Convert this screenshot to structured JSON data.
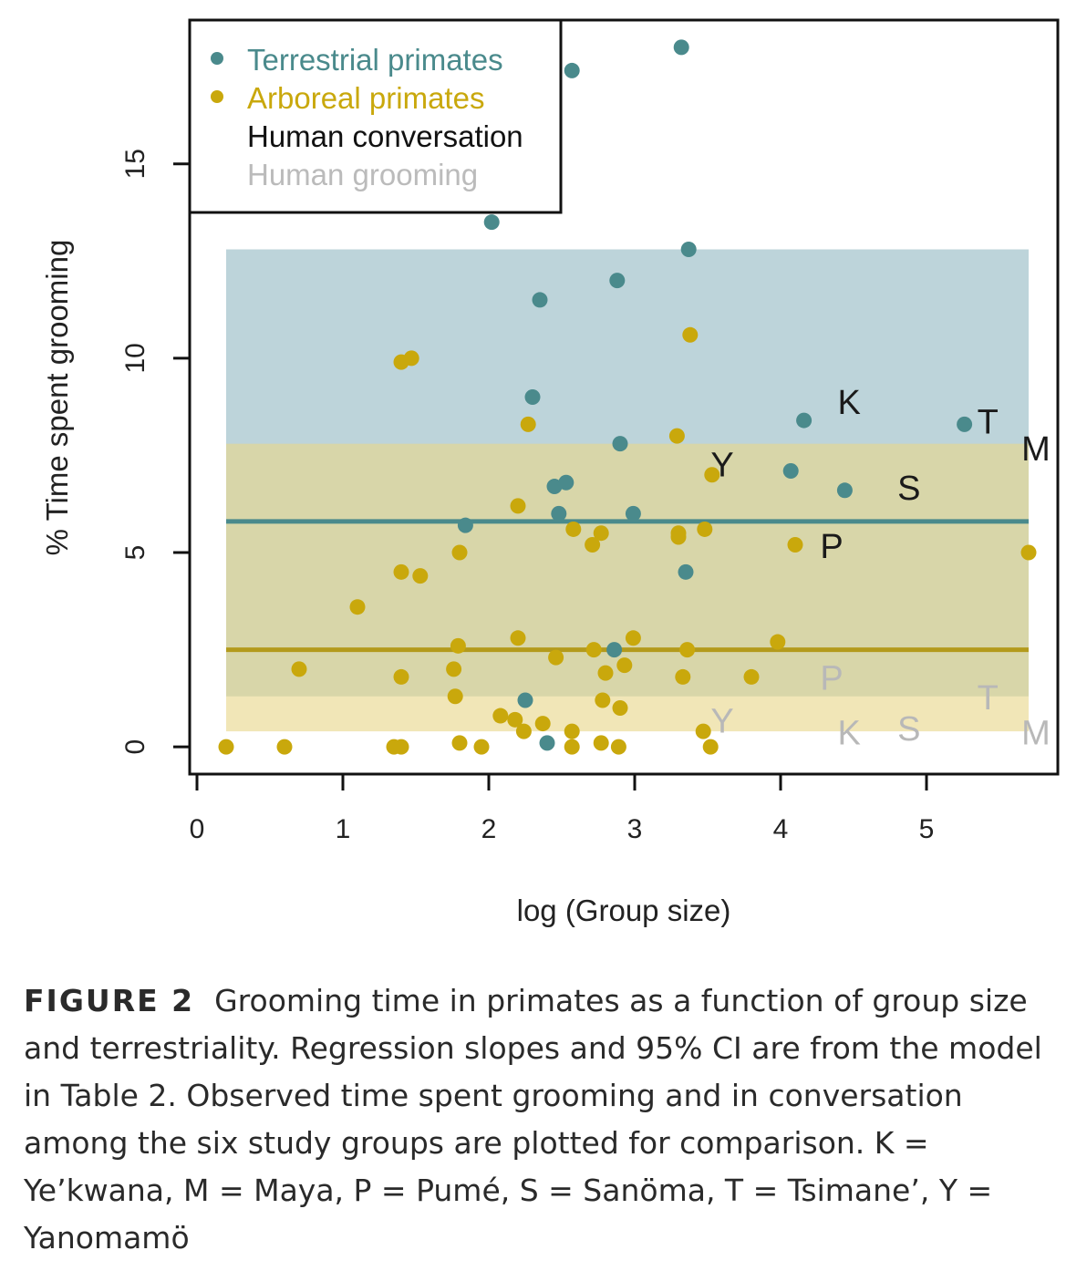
{
  "chart_data": {
    "type": "scatter",
    "xlabel": "log (Group size)",
    "ylabel": "% Time spent grooming",
    "xlim": [
      -0.05,
      5.9
    ],
    "ylim": [
      -0.7,
      18.7
    ],
    "xticks": [
      "0",
      "1",
      "2",
      "3",
      "4",
      "5"
    ],
    "yticks": [
      "0",
      "5",
      "10",
      "15"
    ],
    "legend_position": "top-left",
    "legend": [
      {
        "label": "Terrestrial primates",
        "color": "#4a8a8c",
        "marker": "•"
      },
      {
        "label": "Arboreal primates",
        "color": "#c9a80c",
        "marker": "•"
      },
      {
        "label": "Human conversation",
        "color": "#111111",
        "marker": ""
      },
      {
        "label": "Human grooming",
        "color": "#bbbbbb",
        "marker": ""
      }
    ],
    "ci_bands": [
      {
        "series": "Terrestrial primates",
        "x": [
          0.2,
          5.7
        ],
        "ymin": 1.3,
        "ymax": 12.8,
        "color": "#bdd4da"
      },
      {
        "series": "Arboreal primates",
        "x": [
          0.2,
          5.7
        ],
        "ymin": 0.4,
        "ymax": 7.8,
        "color": "#e9d78a"
      }
    ],
    "regression_lines": [
      {
        "series": "Terrestrial primates",
        "x": [
          0.2,
          5.7
        ],
        "y": [
          5.8,
          5.8
        ],
        "color": "#4a8a8c"
      },
      {
        "series": "Arboreal primates",
        "x": [
          0.2,
          5.7
        ],
        "y": [
          2.5,
          2.5
        ],
        "color": "#b39a1c"
      }
    ],
    "series": [
      {
        "name": "Terrestrial primates",
        "color": "#4a8a8c",
        "points": [
          [
            3.32,
            18.0
          ],
          [
            2.57,
            17.4
          ],
          [
            2.02,
            13.5
          ],
          [
            3.37,
            12.8
          ],
          [
            2.88,
            12.0
          ],
          [
            2.35,
            11.5
          ],
          [
            2.3,
            9.0
          ],
          [
            4.16,
            8.4
          ],
          [
            2.9,
            7.8
          ],
          [
            5.26,
            8.3
          ],
          [
            4.07,
            7.1
          ],
          [
            4.44,
            6.6
          ],
          [
            2.45,
            6.7
          ],
          [
            2.53,
            6.8
          ],
          [
            2.48,
            6.0
          ],
          [
            2.99,
            6.0
          ],
          [
            1.84,
            5.7
          ],
          [
            3.35,
            4.5
          ],
          [
            2.86,
            2.5
          ],
          [
            2.25,
            1.2
          ],
          [
            2.4,
            0.1
          ]
        ]
      },
      {
        "name": "Arboreal primates",
        "color": "#c9a80c",
        "points": [
          [
            3.38,
            10.6
          ],
          [
            1.4,
            9.9
          ],
          [
            1.47,
            10.0
          ],
          [
            2.27,
            8.3
          ],
          [
            3.29,
            8.0
          ],
          [
            3.53,
            7.0
          ],
          [
            2.2,
            6.2
          ],
          [
            2.58,
            5.6
          ],
          [
            2.77,
            5.5
          ],
          [
            2.71,
            5.2
          ],
          [
            3.3,
            5.4
          ],
          [
            3.3,
            5.5
          ],
          [
            3.48,
            5.6
          ],
          [
            4.1,
            5.2
          ],
          [
            1.8,
            5.0
          ],
          [
            1.4,
            4.5
          ],
          [
            1.53,
            4.4
          ],
          [
            1.1,
            3.6
          ],
          [
            2.2,
            2.8
          ],
          [
            2.99,
            2.8
          ],
          [
            3.98,
            2.7
          ],
          [
            1.79,
            2.6
          ],
          [
            2.72,
            2.5
          ],
          [
            3.36,
            2.5
          ],
          [
            2.46,
            2.3
          ],
          [
            2.93,
            2.1
          ],
          [
            1.76,
            2.0
          ],
          [
            0.7,
            2.0
          ],
          [
            2.8,
            1.9
          ],
          [
            1.4,
            1.8
          ],
          [
            3.33,
            1.8
          ],
          [
            3.8,
            1.8
          ],
          [
            1.77,
            1.3
          ],
          [
            2.78,
            1.2
          ],
          [
            2.9,
            1.0
          ],
          [
            2.08,
            0.8
          ],
          [
            2.18,
            0.7
          ],
          [
            2.37,
            0.6
          ],
          [
            2.24,
            0.4
          ],
          [
            2.57,
            0.4
          ],
          [
            3.47,
            0.4
          ],
          [
            0.2,
            0.0
          ],
          [
            0.6,
            0.0
          ],
          [
            1.35,
            0.0
          ],
          [
            1.4,
            0.0
          ],
          [
            1.8,
            0.1
          ],
          [
            1.95,
            0.0
          ],
          [
            2.57,
            0.0
          ],
          [
            2.77,
            0.1
          ],
          [
            2.89,
            0.0
          ],
          [
            3.52,
            0.0
          ],
          [
            5.7,
            5.0
          ]
        ]
      }
    ],
    "human_conversation": [
      {
        "label": "K",
        "x": 4.47,
        "y": 8.8
      },
      {
        "label": "T",
        "x": 5.42,
        "y": 8.3
      },
      {
        "label": "M",
        "x": 5.75,
        "y": 7.6
      },
      {
        "label": "Y",
        "x": 3.6,
        "y": 7.2
      },
      {
        "label": "S",
        "x": 4.88,
        "y": 6.6
      },
      {
        "label": "P",
        "x": 4.35,
        "y": 5.1
      }
    ],
    "human_grooming": [
      {
        "label": "P",
        "x": 4.35,
        "y": 1.7
      },
      {
        "label": "T",
        "x": 5.42,
        "y": 1.2
      },
      {
        "label": "Y",
        "x": 3.6,
        "y": 0.6
      },
      {
        "label": "K",
        "x": 4.47,
        "y": 0.3
      },
      {
        "label": "S",
        "x": 4.88,
        "y": 0.4
      },
      {
        "label": "M",
        "x": 5.75,
        "y": 0.3
      }
    ]
  },
  "caption": {
    "label": "FIGURE 2",
    "text": "Grooming time in primates as a function of group size and terrestriality. Regression slopes and 95% CI are from the model in Table 2. Observed time spent grooming and in conversation among the six study groups are plotted for comparison. K = Ye’kwana, M = Maya, P = Pumé, S = Sanöma, T = Tsimane’, Y = Yanomamö"
  }
}
